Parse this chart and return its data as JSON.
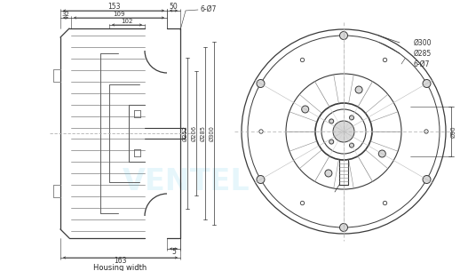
{
  "bg_color": "#ffffff",
  "line_color": "#3a3a3a",
  "dim_color": "#333333",
  "gray1": "#b0b0b0",
  "gray2": "#888888",
  "gray3": "#606060",
  "gray4": "#d8d8d8",
  "annotations_left": {
    "dim_153": "153",
    "dim_32": "32",
    "dim_109": "109",
    "dim_102": "102",
    "dim_50": "50",
    "dim_6d7": "6-Ø7",
    "dim_d252": "Ø252",
    "dim_d206": "Ø206",
    "dim_d285": "Ø285",
    "dim_d300": "Ø300",
    "dim_5": "5",
    "dim_163": "163",
    "housing_width": "Housing width"
  },
  "annotations_right": {
    "dim_d300": "Ø300",
    "dim_d285": "Ø285",
    "dim_6d7": "6-Ø7",
    "dim_d90": "Ø90"
  }
}
